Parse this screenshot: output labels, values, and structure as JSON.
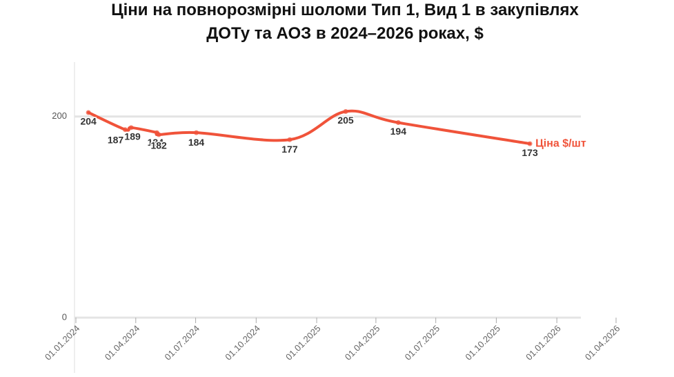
{
  "chart_data": {
    "type": "line",
    "title": "Ціни на повнорозмірні шоломи Тип 1, Вид 1 в закупівлях ДОТу та АОЗ в 2024–2026 роках, $",
    "x": [
      "20.01.2024",
      "16.03.2024",
      "25.03.2024",
      "03.05.2024",
      "06.05.2024",
      "02.07.2024",
      "21.11.2024",
      "14.02.2025",
      "05.05.2025",
      "21.11.2025"
    ],
    "series": [
      {
        "name": "Ціна $/шт",
        "color": "#f0533a",
        "values": [
          204,
          187,
          189,
          184,
          182,
          184,
          177,
          205,
          194,
          173
        ]
      }
    ],
    "xlim": [
      "01.01.2024",
      "01.04.2026"
    ],
    "xticks": [
      "01.01.2024",
      "01.04.2024",
      "01.07.2024",
      "01.10.2024",
      "01.01.2025",
      "01.04.2025",
      "01.07.2025",
      "01.10.2025",
      "01.01.2026",
      "01.04.2026"
    ],
    "ylim": [
      0,
      250
    ],
    "yticks": [
      0,
      200
    ],
    "grid": true
  }
}
